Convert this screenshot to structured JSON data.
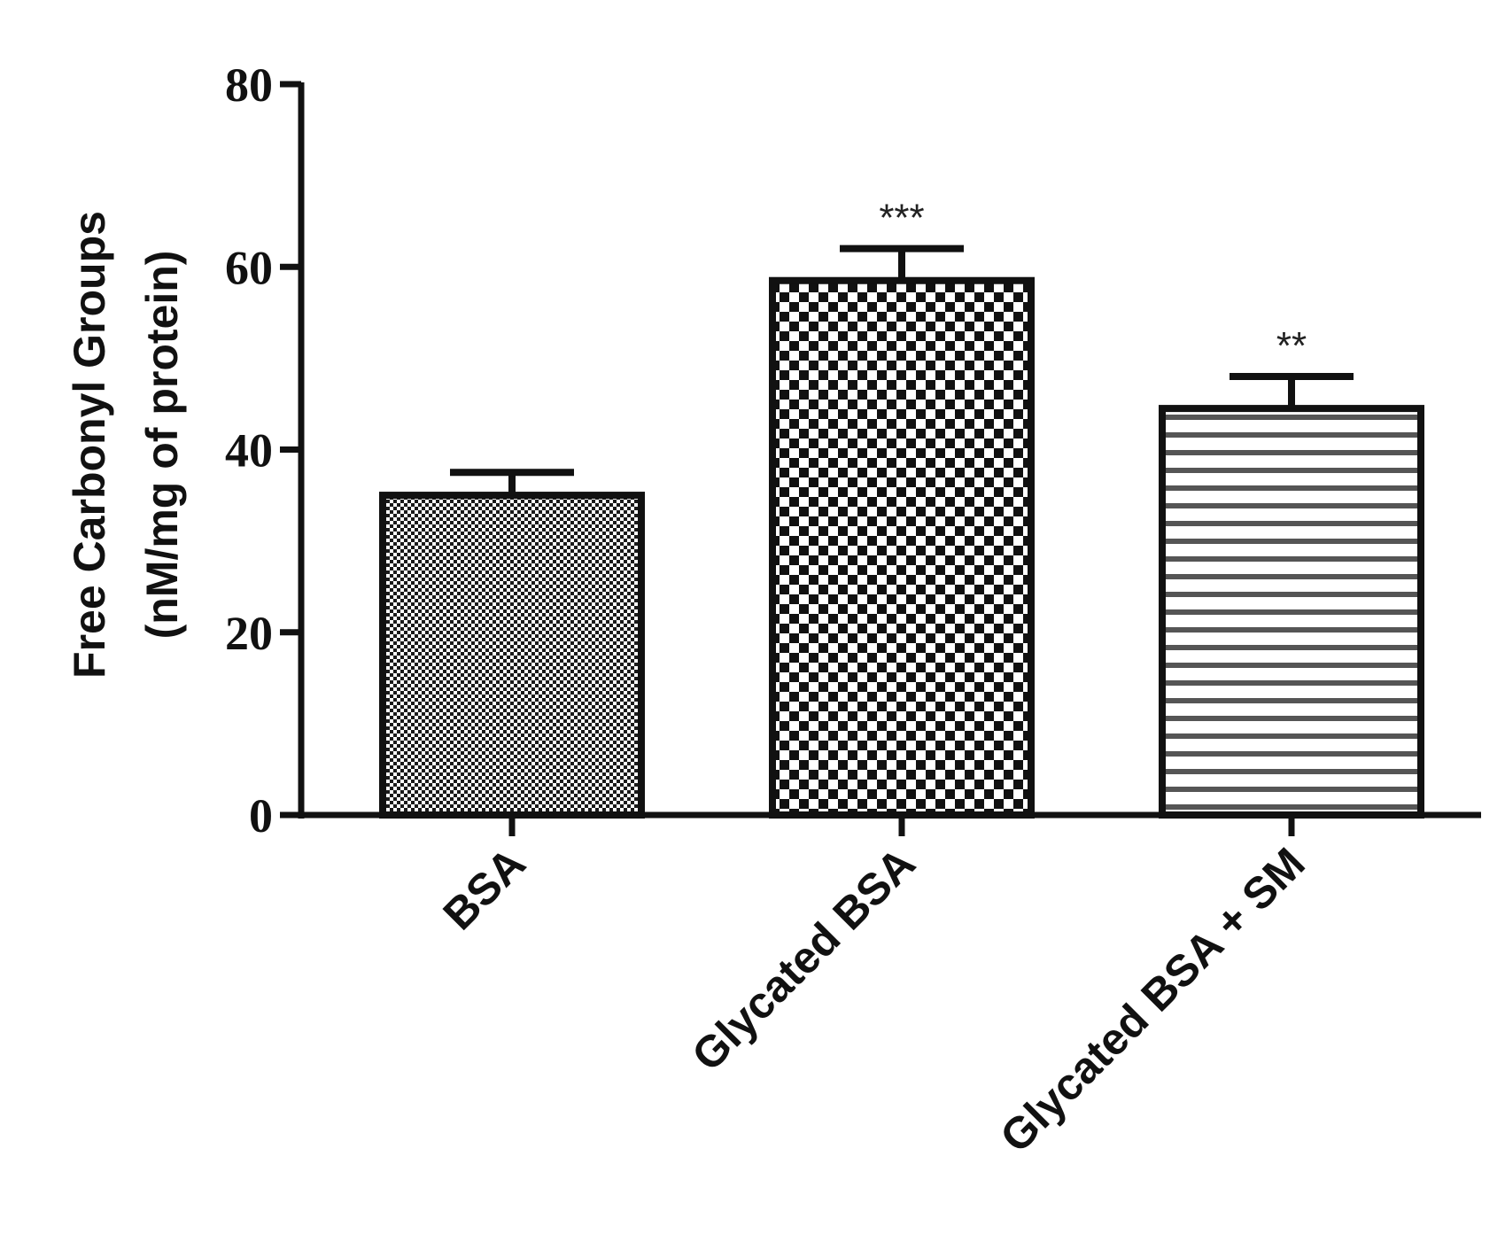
{
  "chart_data": {
    "type": "bar",
    "title": "",
    "ylabel_lines": [
      "Free Carbonyl Groups",
      "(nM/mg of protein)"
    ],
    "xlabel": "",
    "ylim": [
      0,
      80
    ],
    "yticks": [
      0,
      20,
      40,
      60,
      80
    ],
    "categories": [
      "BSA",
      "Glycated BSA",
      "Glycated BSA + SM"
    ],
    "values": [
      35,
      58.5,
      44.5
    ],
    "errors": [
      2.5,
      3.5,
      3.5
    ],
    "annotations": [
      "",
      "***",
      "**"
    ],
    "patterns": [
      "fine-dots",
      "checkerboard",
      "horizontal-lines"
    ],
    "colors": {
      "axis": "#111111",
      "bar_outline": "#111111",
      "pattern_dark": "#1a1a1a",
      "pattern_light": "#ffffff",
      "pattern_line": "#555555"
    },
    "grid": false,
    "legend": "none"
  }
}
